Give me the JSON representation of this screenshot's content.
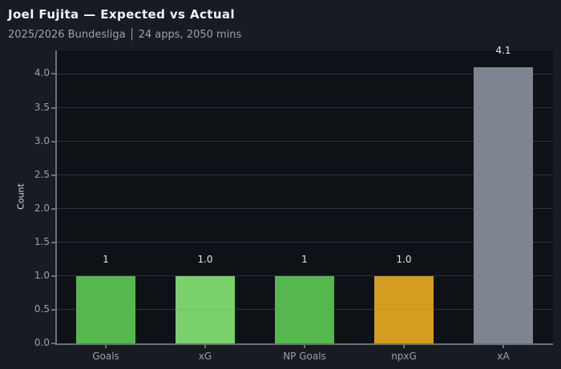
{
  "header": {
    "title": "Joel Fujita — Expected vs Actual",
    "subtitle": "2025/2026 Bundesliga │ 24 apps, 2050 mins"
  },
  "chart_data": {
    "type": "bar",
    "title": "Joel Fujita — Expected vs Actual",
    "subtitle": "2025/2026 Bundesliga │ 24 apps, 2050 mins",
    "categories": [
      "Goals",
      "xG",
      "NP Goals",
      "npxG",
      "xA"
    ],
    "values": [
      1,
      1.0,
      1,
      1.0,
      4.1
    ],
    "value_labels": [
      "1",
      "1.0",
      "1",
      "1.0",
      "4.1"
    ],
    "bar_colors": [
      "#55b84e",
      "#7ad16b",
      "#55b84e",
      "#d49c20",
      "#7e8590"
    ],
    "xlabel": "",
    "ylabel": "Count",
    "ylim": [
      0,
      4.35
    ],
    "yticks": [
      0.0,
      0.5,
      1.0,
      1.5,
      2.0,
      2.5,
      3.0,
      3.5,
      4.0
    ],
    "ytick_labels": [
      "0.0",
      "0.5",
      "1.0",
      "1.5",
      "2.0",
      "2.5",
      "3.0",
      "3.5",
      "4.0"
    ],
    "grid": "horizontal",
    "legend": "none"
  },
  "colors": {
    "outer_bg": "#181b22",
    "plot_bg": "#0e1116",
    "title_text": "#f3f4f6",
    "subtitle_text": "#9aa0a9",
    "tick_text": "#9aa0a9",
    "value_text": "#e4e6e9",
    "spine": "#6b707a"
  }
}
